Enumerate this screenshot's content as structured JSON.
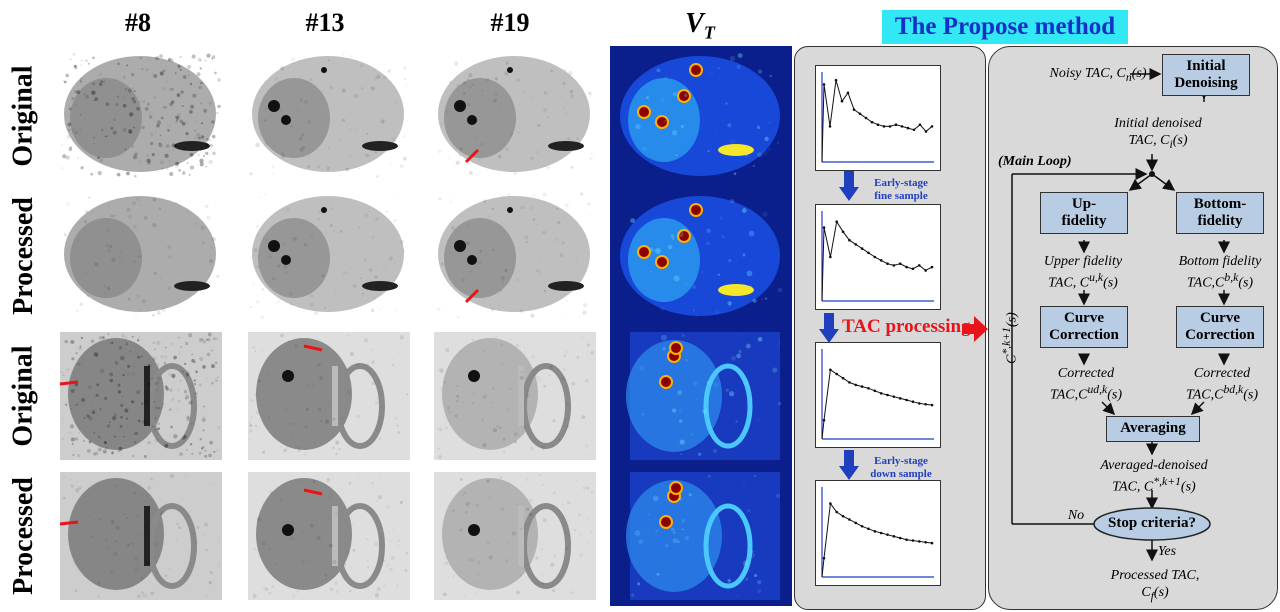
{
  "columns": [
    "#8",
    "#13",
    "#19"
  ],
  "vt_label": "V",
  "vt_sub": "T",
  "rows": [
    "Original",
    "Processed",
    "Original",
    "Processed"
  ],
  "title": "The Propose method",
  "middle": {
    "early_fine": [
      "Early-stage",
      "fine sample"
    ],
    "tac_processing": "TAC processing",
    "early_down": [
      "Early-stage",
      "down sample"
    ]
  },
  "flow": {
    "noisy_tac": "Noisy TAC, C",
    "noisy_sub": "n",
    "initial_denoising": [
      "Initial",
      "Denoising"
    ],
    "initial_denoised": [
      "Initial denoised",
      "TAC, C"
    ],
    "initial_sub": "i",
    "main_loop": "(Main Loop)",
    "up_fidelity": [
      "Up-",
      "fidelity"
    ],
    "bottom_fidelity": [
      "Bottom-",
      "fidelity"
    ],
    "upper_tac": [
      "Upper fidelity",
      "TAC, C"
    ],
    "upper_sup": "u,k",
    "bottom_tac": [
      "Bottom fidelity",
      "TAC,C"
    ],
    "bottom_sup": "b,k",
    "curve_correction": [
      "Curve",
      "Correction"
    ],
    "corrected": "Corrected",
    "corr_up_sup": "ud,k",
    "corr_bot_sup": "bd,k",
    "averaging": "Averaging",
    "averaged": [
      "Averaged-denoised",
      "TAC, C"
    ],
    "averaged_sup": "*,k+1",
    "loop_label": "C",
    "loop_sup": "*,k+1",
    "stop": "Stop criteria?",
    "no": "No",
    "yes": "Yes",
    "processed": [
      "Processed TAC,",
      "C"
    ],
    "processed_sub": "f",
    "arg": "(s)"
  },
  "colors": {
    "arrow_red": "#e8141a",
    "arrow_blue": "#1f3fbf",
    "node_fill": "#b8cce4",
    "title_bg": "#33e8f5",
    "title_text": "#1530c8"
  }
}
